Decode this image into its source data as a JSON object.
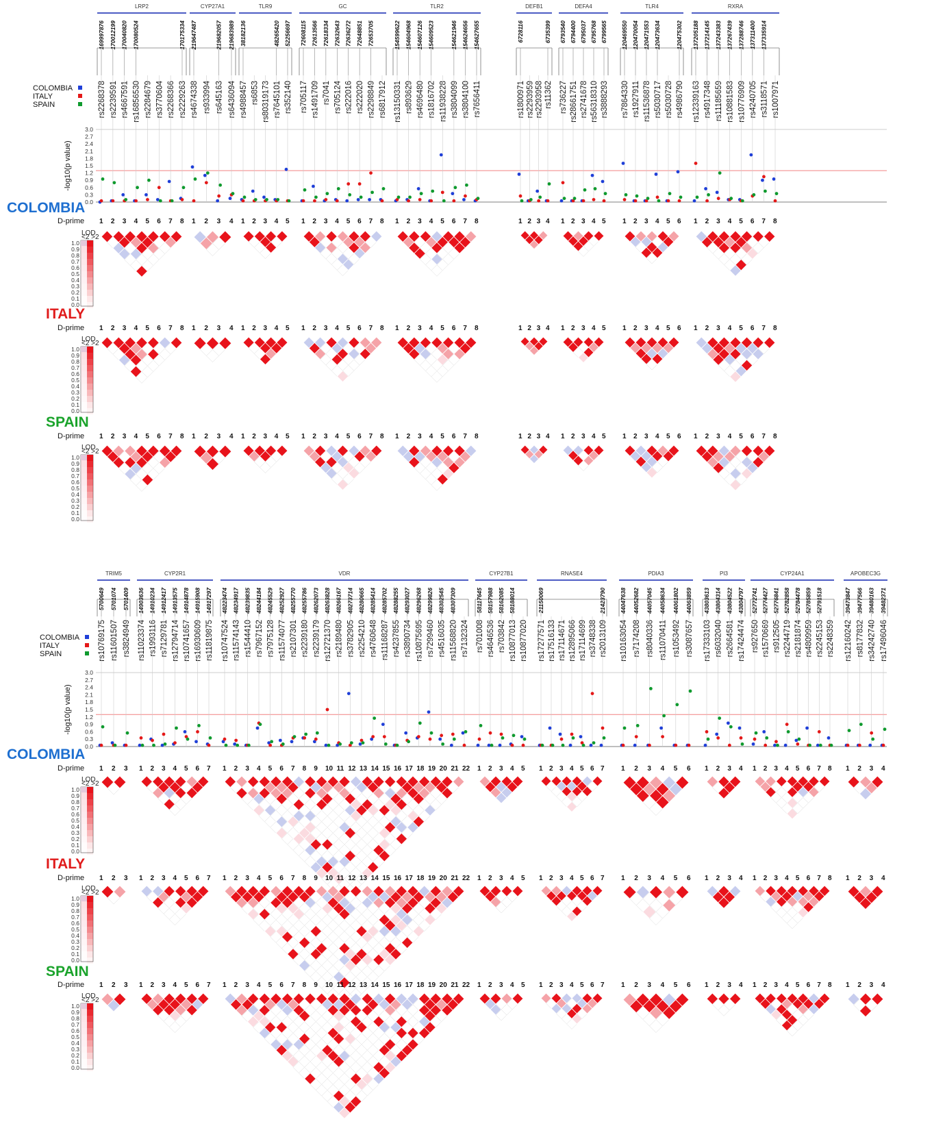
{
  "colors": {
    "colombia": "#1f3fd8",
    "italy": "#e41818",
    "spain": "#0f9a2e",
    "colombia_title": "#1e6fd0",
    "italy_title": "#e01b1b",
    "spain_title": "#1aa32b",
    "gene_bar": "#3344bb",
    "threshold": "#f08080",
    "ld_strong": "#e8131b",
    "ld_weak": "#c7cdee"
  },
  "legend": {
    "colombia": "COLOMBIA",
    "italy": "ITALY",
    "spain": "SPAIN"
  },
  "labels": {
    "ylabel": "-log10(p value)",
    "dprime": "D-prime",
    "lod": "LOD",
    "lod_sub": "<2 >2"
  },
  "population_titles": [
    "COLOMBIA",
    "ITALY",
    "SPAIN"
  ],
  "yticks": [
    "3.0",
    "2.7",
    "2.4",
    "2.1",
    "1.8",
    "1.5",
    "1.2",
    "0.9",
    "0.6",
    "0.3",
    "0.0"
  ],
  "lod_ticks": [
    "1.0",
    "0.9",
    "0.8",
    "0.7",
    "0.6",
    "0.5",
    "0.4",
    "0.3",
    "0.2",
    "0.1",
    "0.0"
  ],
  "chart_data": [
    {
      "type": "scatter",
      "title": "",
      "ylabel": "-log10(p value)",
      "ylim": [
        0,
        3.0
      ],
      "threshold": 1.3,
      "genes": [
        {
          "name": "LRP2",
          "snps": [
            "rs2268378",
            "rs2239591",
            "rs4667591",
            "rs16856530",
            "rs2284679",
            "rs3770604",
            "rs2268366",
            "rs2229263"
          ],
          "positions": [
            "169997876",
            "170012199",
            "170040820",
            "170080524",
            "",
            "",
            "",
            "170175334"
          ],
          "colombia": [
            0.0,
            0.05,
            0.3,
            0.05,
            0.3,
            0.1,
            0.85,
            0.15
          ],
          "italy": [
            0.05,
            0.05,
            0.05,
            0.05,
            0.1,
            0.6,
            0.05,
            0.1
          ],
          "spain": [
            0.95,
            0.8,
            0.1,
            0.6,
            0.9,
            0.05,
            0.05,
            0.6
          ]
        },
        {
          "name": "CYP27A1",
          "snps": [
            "rs4674338",
            "rs933994",
            "rs645163",
            "rs6436094"
          ],
          "positions": [
            "219647487",
            "",
            "219682057",
            "219683989"
          ],
          "colombia": [
            1.45,
            1.1,
            0.05,
            0.15
          ],
          "italy": [
            0.05,
            0.8,
            0.25,
            0.3
          ],
          "spain": [
            0.95,
            1.2,
            0.7,
            0.35
          ]
        },
        {
          "name": "TLR9",
          "snps": [
            "rs4988457",
            "rs6853",
            "rs80319173",
            "rs7645101",
            "rs352140"
          ],
          "positions": [
            "38182136",
            "",
            "",
            "48265420",
            "52256697"
          ],
          "colombia": [
            0.1,
            0.45,
            0.2,
            0.1,
            1.35
          ],
          "italy": [
            0.05,
            0.05,
            0.05,
            0.05,
            0.05
          ],
          "spain": [
            0.2,
            0.1,
            0.1,
            0.1,
            0.05
          ]
        },
        {
          "name": "GC",
          "snps": [
            "rs705117",
            "rs1491709",
            "rs7041",
            "rs705124",
            "rs222016",
            "rs222020",
            "rs2298849",
            "rs6817912"
          ],
          "positions": [
            "72608115",
            "72613566",
            "72618334",
            "72632643",
            "72636272",
            "72648851",
            "72653705",
            ""
          ],
          "colombia": [
            0.05,
            0.65,
            0.05,
            0.1,
            0.05,
            0.1,
            0.1,
            0.1
          ],
          "italy": [
            0.05,
            0.05,
            0.1,
            0.05,
            0.75,
            0.75,
            1.2,
            0.05
          ],
          "spain": [
            0.5,
            0.2,
            0.35,
            0.55,
            0.3,
            0.2,
            0.4,
            0.55
          ]
        },
        {
          "name": "TLR2",
          "snps": [
            "rs13150331",
            "rs893629",
            "rs4696480",
            "rs1816702",
            "rs11938228",
            "rs3804099",
            "rs3804100",
            "rs7656411"
          ],
          "positions": [
            "154599622",
            "154604968",
            "154607126",
            "154609523",
            "",
            "154621946",
            "154624656",
            "154627655"
          ],
          "colombia": [
            0.05,
            0.1,
            0.55,
            0.05,
            1.95,
            0.35,
            0.1,
            0.05
          ],
          "italy": [
            0.1,
            0.05,
            0.1,
            0.05,
            0.4,
            0.05,
            0.25,
            0.1
          ],
          "spain": [
            0.2,
            0.2,
            0.35,
            0.45,
            0.05,
            0.6,
            0.7,
            0.15
          ]
        },
        {
          "name": "DEFB1",
          "snps": [
            "rs1800971",
            "rs2293959",
            "rs2293958",
            "rs11362"
          ],
          "positions": [
            "6728116",
            "",
            "",
            "6735399"
          ],
          "colombia": [
            1.15,
            0.05,
            0.45,
            0.05
          ],
          "italy": [
            0.25,
            0.05,
            0.05,
            0.05
          ],
          "spain": [
            0.05,
            0.1,
            0.2,
            0.75
          ]
        },
        {
          "name": "DEFA4",
          "snps": [
            "rs736227",
            "rs28661751",
            "rs2741678",
            "rs56318310",
            "rs3888293"
          ],
          "positions": [
            "6793540",
            "6794400",
            "6795037",
            "6795768",
            "6799565"
          ],
          "colombia": [
            0.05,
            0.05,
            0.05,
            1.1,
            0.85
          ],
          "italy": [
            0.8,
            0.05,
            0.05,
            0.1,
            0.05
          ],
          "spain": [
            0.15,
            0.15,
            0.5,
            0.55,
            0.35
          ]
        },
        {
          "name": "TLR4",
          "snps": [
            "rs7864330",
            "rs1927911",
            "rs11536878",
            "rs5030717",
            "rs5030728",
            "rs4986790"
          ],
          "positions": [
            "120469550",
            "120470054",
            "120471553",
            "120473634",
            "",
            "120475302"
          ],
          "colombia": [
            1.6,
            0.05,
            0.05,
            1.15,
            0.05,
            1.25
          ],
          "italy": [
            0.1,
            0.05,
            0.05,
            0.2,
            0.05,
            0.05
          ],
          "spain": [
            0.3,
            0.25,
            0.15,
            0.05,
            0.35,
            0.2
          ]
        },
        {
          "name": "RXRA",
          "snps": [
            "rs12339163",
            "rs4917348",
            "rs11185659",
            "rs10881583",
            "rs10776909",
            "rs4240705",
            "rs3118571",
            "rs1007971"
          ],
          "positions": [
            "137205188",
            "137214145",
            "137243383",
            "137267439",
            "137288746",
            "137311400",
            "137335914",
            ""
          ],
          "colombia": [
            0.05,
            0.55,
            0.4,
            0.1,
            0.1,
            1.95,
            0.9,
            0.95
          ],
          "italy": [
            1.6,
            0.05,
            0.15,
            0.1,
            0.05,
            0.25,
            1.05,
            0.05
          ],
          "spain": [
            0.2,
            0.3,
            1.2,
            0.15,
            0.05,
            0.3,
            0.45,
            0.35
          ]
        }
      ]
    },
    {
      "type": "scatter",
      "title": "",
      "ylabel": "-log10(p value)",
      "ylim": [
        0,
        3.0
      ],
      "threshold": 1.3,
      "genes": [
        {
          "name": "TRIM5",
          "snps": [
            "rs10769175",
            "rs11601507",
            "rs3824949"
          ],
          "positions": [
            "5700649",
            "5701074",
            "5701409"
          ],
          "colombia": [
            0.05,
            0.15,
            0.05
          ],
          "italy": [
            0.05,
            0.05,
            0.05
          ],
          "spain": [
            0.8,
            0.05,
            0.55
          ]
        },
        {
          "name": "CYP2R1",
          "snps": [
            "rs11023374",
            "rs1993116",
            "rs7129781",
            "rs12794714",
            "rs10741657",
            "rs16930609",
            "rs11819875"
          ],
          "positions": [
            "14903636",
            "14910234",
            "14912417",
            "14913575",
            "14914878",
            "14915908",
            "14917297"
          ],
          "colombia": [
            0.05,
            0.3,
            0.05,
            0.1,
            0.6,
            0.2,
            0.1
          ],
          "italy": [
            0.35,
            0.25,
            0.5,
            0.15,
            0.4,
            0.6,
            0.05
          ],
          "spain": [
            0.05,
            0.05,
            0.1,
            0.75,
            0.3,
            0.85,
            0.35
          ]
        },
        {
          "name": "VDR",
          "snps": [
            "rs10747524",
            "rs11574143",
            "rs1544410",
            "rs7967152",
            "rs7975128",
            "rs11574077",
            "rs2107301",
            "rs2239180",
            "rs2239179",
            "rs12721370",
            "rs2189480",
            "rs3782905",
            "rs2254210",
            "rs4760648",
            "rs11168287",
            "rs4237855",
            "rs3890734",
            "rs10875695",
            "rs7299460",
            "rs4516035",
            "rs11568820",
            "rs7132324"
          ],
          "positions": [
            "48223474",
            "48234917",
            "48239835",
            "48244184",
            "48245529",
            "48252927",
            "48255770",
            "48255786",
            "48262073",
            "48263828",
            "48266167",
            "48273714",
            "48280665",
            "48285414",
            "48285702",
            "48288255",
            "48293027",
            "48296268",
            "48299826",
            "48302545",
            "48307309",
            ""
          ],
          "colombia": [
            0.2,
            0.1,
            0.05,
            0.75,
            0.15,
            0.25,
            0.2,
            0.35,
            0.2,
            0.05,
            0.05,
            2.15,
            0.1,
            0.3,
            0.9,
            0.05,
            0.55,
            0.35,
            1.4,
            0.3,
            0.05,
            0.55
          ],
          "italy": [
            0.3,
            0.25,
            0.05,
            0.95,
            0.05,
            0.05,
            0.35,
            0.35,
            0.3,
            1.5,
            0.15,
            0.05,
            0.25,
            0.4,
            0.4,
            0.05,
            0.25,
            0.4,
            0.3,
            0.45,
            0.5,
            0.05
          ],
          "spain": [
            0.05,
            0.05,
            0.05,
            0.9,
            0.2,
            0.1,
            0.4,
            0.5,
            0.55,
            0.05,
            0.1,
            0.15,
            0.15,
            1.15,
            0.1,
            0.05,
            0.2,
            0.95,
            0.55,
            0.1,
            0.3,
            0.6
          ]
        },
        {
          "name": "CYP27B1",
          "snps": [
            "rs701008",
            "rs4646536",
            "rs703842",
            "rs10877013",
            "rs10877020"
          ],
          "positions": [
            "58117645",
            "58157988",
            "58162085",
            "58188014",
            ""
          ],
          "colombia": [
            0.05,
            0.05,
            0.05,
            0.1,
            0.4
          ],
          "italy": [
            0.3,
            0.55,
            0.5,
            0.05,
            0.05
          ],
          "spain": [
            0.85,
            0.05,
            0.35,
            0.45,
            0.3
          ]
        },
        {
          "name": "RNASE4",
          "snps": [
            "rs17277571",
            "rs17516133",
            "rs17114671",
            "rs12895066",
            "rs17114699",
            "rs3748338",
            "rs2013109"
          ],
          "positions": [
            "21150069",
            "",
            "",
            "",
            "",
            "",
            "21423790"
          ],
          "colombia": [
            0.05,
            0.75,
            0.5,
            0.05,
            0.4,
            0.05,
            0.05
          ],
          "italy": [
            0.05,
            0.05,
            0.3,
            0.5,
            0.15,
            2.15,
            0.75
          ],
          "spain": [
            0.05,
            0.05,
            0.05,
            0.35,
            0.05,
            0.15,
            0.35
          ]
        },
        {
          "name": "PDIA3",
          "snps": [
            "rs10163054",
            "rs7174208",
            "rs8040336",
            "rs11070411",
            "rs1053492",
            "rs3087657"
          ],
          "positions": [
            "44047638",
            "44052682",
            "44057045",
            "44058634",
            "44061802",
            "44063859"
          ],
          "colombia": [
            0.05,
            0.05,
            0.05,
            0.75,
            0.05,
            0.05
          ],
          "italy": [
            0.05,
            0.4,
            0.05,
            0.4,
            0.05,
            0.05
          ],
          "spain": [
            0.75,
            0.85,
            2.35,
            1.25,
            1.7,
            2.25
          ]
        },
        {
          "name": "PI3",
          "snps": [
            "rs17333103",
            "rs6032040",
            "rs2664581",
            "rs17424474"
          ],
          "positions": [
            "43803613",
            "43804314",
            "43804522",
            "43804797"
          ],
          "colombia": [
            0.05,
            0.5,
            0.95,
            0.75
          ],
          "italy": [
            0.6,
            0.35,
            0.05,
            0.35
          ],
          "spain": [
            0.3,
            1.15,
            0.8,
            0.1
          ]
        },
        {
          "name": "CYP24A1",
          "snps": [
            "rs927650",
            "rs1570669",
            "rs912505",
            "rs2244719",
            "rs2181874",
            "rs4809959",
            "rs2245153",
            "rs2248359"
          ],
          "positions": [
            "52772741",
            "52774427",
            "52776841",
            "52782858",
            "52784478",
            "52785859",
            "52791518",
            ""
          ],
          "colombia": [
            0.1,
            0.6,
            0.05,
            0.05,
            0.25,
            0.75,
            0.05,
            0.35
          ],
          "italy": [
            0.3,
            0.05,
            0.2,
            0.9,
            0.1,
            0.05,
            0.6,
            0.05
          ],
          "spain": [
            0.55,
            0.35,
            0.05,
            0.6,
            0.3,
            0.05,
            0.05,
            0.05
          ]
        },
        {
          "name": "APOBEC3G",
          "snps": [
            "rs12160242",
            "rs8177832",
            "rs34242740",
            "rs17496046"
          ],
          "positions": [
            "39473847",
            "39477566",
            "39480163",
            "39482371"
          ],
          "colombia": [
            0.05,
            0.05,
            0.05,
            0.05
          ],
          "italy": [
            0.05,
            0.05,
            0.55,
            0.05
          ],
          "spain": [
            0.65,
            0.9,
            0.3,
            0.7
          ]
        }
      ]
    }
  ]
}
